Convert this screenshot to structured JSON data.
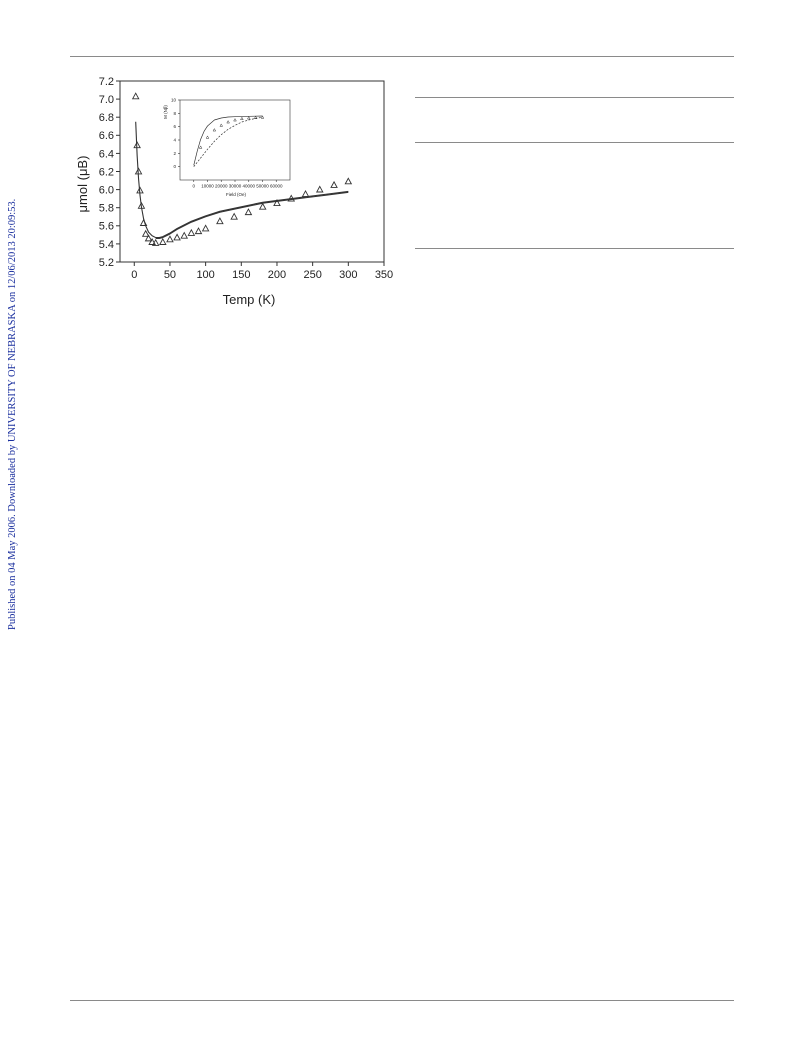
{
  "sidebar": {
    "text": "Published on 04 May 2006. Downloaded by UNIVERSITY OF NEBRASKA on 12/06/2013 20:09:53."
  },
  "colors": {
    "sidebar_link": "#1a2f9e",
    "rule": "#8a8a8a",
    "plot": "#333333"
  },
  "chart_data": [
    {
      "type": "scatter",
      "title": "",
      "xlabel": "Temp (K)",
      "ylabel": "μmol (μB)",
      "xlim": [
        -20,
        350
      ],
      "ylim": [
        5.2,
        7.2
      ],
      "xticks": [
        0,
        50,
        100,
        150,
        200,
        250,
        300,
        350
      ],
      "yticks": [
        5.2,
        5.4,
        5.6,
        5.8,
        6.0,
        6.2,
        6.4,
        6.6,
        6.8,
        7.0,
        7.2
      ],
      "grid": false,
      "series": [
        {
          "marker": "triangle",
          "x": [
            2,
            4,
            6,
            8,
            10,
            13,
            16,
            20,
            25,
            30,
            40,
            50,
            60,
            70,
            80,
            90,
            100,
            120,
            140,
            160,
            180,
            200,
            220,
            240,
            260,
            280,
            300
          ],
          "y": [
            7.03,
            6.49,
            6.2,
            5.99,
            5.82,
            5.63,
            5.51,
            5.46,
            5.42,
            5.41,
            5.42,
            5.45,
            5.47,
            5.49,
            5.52,
            5.54,
            5.57,
            5.65,
            5.7,
            5.75,
            5.81,
            5.85,
            5.9,
            5.95,
            6.0,
            6.05,
            6.09
          ]
        },
        {
          "style": "solid",
          "x": [
            2,
            4,
            6,
            8,
            10,
            13,
            16,
            20,
            25,
            30,
            35,
            40,
            50,
            60,
            80,
            100,
            120,
            150,
            180,
            210,
            240,
            270,
            300
          ],
          "y": [
            6.75,
            6.38,
            6.12,
            5.94,
            5.81,
            5.68,
            5.6,
            5.53,
            5.49,
            5.47,
            5.47,
            5.48,
            5.52,
            5.57,
            5.65,
            5.71,
            5.76,
            5.81,
            5.86,
            5.89,
            5.92,
            5.95,
            5.98
          ]
        },
        {
          "style": "solid",
          "x": [
            30,
            35,
            40,
            50,
            60,
            80,
            100,
            120,
            150,
            180,
            210,
            240,
            270,
            300
          ],
          "y": [
            5.46,
            5.46,
            5.47,
            5.51,
            5.56,
            5.64,
            5.7,
            5.75,
            5.8,
            5.85,
            5.88,
            5.91,
            5.94,
            5.97
          ]
        }
      ]
    },
    {
      "type": "scatter",
      "title": "",
      "xlabel": "Field (Oe)",
      "ylabel": "M (Nβ)",
      "xlim": [
        -10000,
        70000
      ],
      "ylim": [
        -2,
        10
      ],
      "xticks": [
        0,
        10000,
        20000,
        30000,
        40000,
        50000,
        60000
      ],
      "yticks": [
        0,
        2,
        4,
        6,
        8,
        10
      ],
      "grid": false,
      "series": [
        {
          "marker": "triangle",
          "x": [
            5000,
            10000,
            15000,
            20000,
            25000,
            30000,
            35000,
            40000,
            45000,
            50000
          ],
          "y": [
            2.9,
            4.4,
            5.5,
            6.2,
            6.7,
            7.0,
            7.2,
            7.3,
            7.35,
            7.4
          ]
        },
        {
          "style": "solid",
          "x": [
            0,
            2500,
            5000,
            7500,
            10000,
            15000,
            20000,
            25000,
            30000,
            40000,
            50000
          ],
          "y": [
            0.2,
            2.3,
            4.1,
            5.3,
            6.1,
            7.0,
            7.3,
            7.45,
            7.5,
            7.55,
            7.6
          ]
        },
        {
          "style": "dashed",
          "x": [
            0,
            5000,
            10000,
            15000,
            20000,
            25000,
            30000,
            35000,
            40000,
            45000,
            50000
          ],
          "y": [
            0.0,
            1.3,
            2.6,
            3.8,
            4.8,
            5.6,
            6.2,
            6.7,
            7.0,
            7.25,
            7.4
          ]
        }
      ]
    }
  ]
}
